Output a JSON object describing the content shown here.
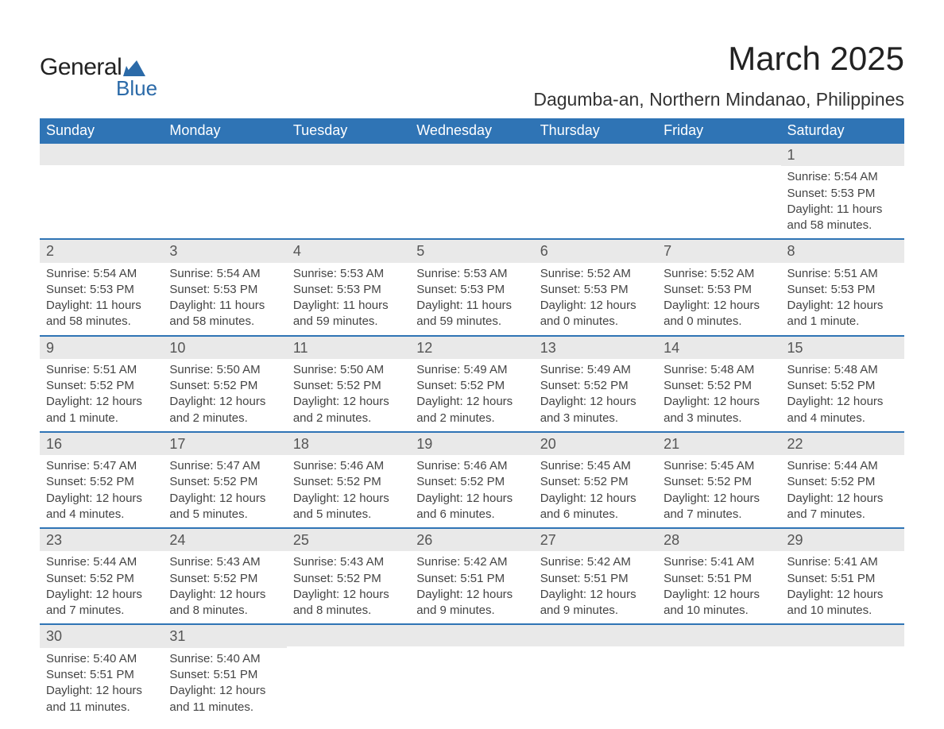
{
  "brand": {
    "text_top": "General",
    "text_bottom": "Blue",
    "shape_color": "#2b6aa8",
    "text_top_color": "#222222",
    "text_bottom_color": "#2b6aa8"
  },
  "header": {
    "month_title": "March 2025",
    "location": "Dagumba-an, Northern Mindanao, Philippines",
    "title_fontsize": 42,
    "location_fontsize": 23,
    "title_color": "#222222"
  },
  "colors": {
    "header_bg": "#2f74b5",
    "header_text": "#ffffff",
    "daynum_bg": "#e9e9e9",
    "daynum_text": "#555555",
    "row_border": "#2f74b5",
    "body_text": "#444444",
    "page_bg": "#ffffff"
  },
  "weekdays": [
    "Sunday",
    "Monday",
    "Tuesday",
    "Wednesday",
    "Thursday",
    "Friday",
    "Saturday"
  ],
  "weeks": [
    [
      {
        "day": "",
        "sunrise": "",
        "sunset": "",
        "daylight": ""
      },
      {
        "day": "",
        "sunrise": "",
        "sunset": "",
        "daylight": ""
      },
      {
        "day": "",
        "sunrise": "",
        "sunset": "",
        "daylight": ""
      },
      {
        "day": "",
        "sunrise": "",
        "sunset": "",
        "daylight": ""
      },
      {
        "day": "",
        "sunrise": "",
        "sunset": "",
        "daylight": ""
      },
      {
        "day": "",
        "sunrise": "",
        "sunset": "",
        "daylight": ""
      },
      {
        "day": "1",
        "sunrise": "Sunrise: 5:54 AM",
        "sunset": "Sunset: 5:53 PM",
        "daylight": "Daylight: 11 hours and 58 minutes."
      }
    ],
    [
      {
        "day": "2",
        "sunrise": "Sunrise: 5:54 AM",
        "sunset": "Sunset: 5:53 PM",
        "daylight": "Daylight: 11 hours and 58 minutes."
      },
      {
        "day": "3",
        "sunrise": "Sunrise: 5:54 AM",
        "sunset": "Sunset: 5:53 PM",
        "daylight": "Daylight: 11 hours and 58 minutes."
      },
      {
        "day": "4",
        "sunrise": "Sunrise: 5:53 AM",
        "sunset": "Sunset: 5:53 PM",
        "daylight": "Daylight: 11 hours and 59 minutes."
      },
      {
        "day": "5",
        "sunrise": "Sunrise: 5:53 AM",
        "sunset": "Sunset: 5:53 PM",
        "daylight": "Daylight: 11 hours and 59 minutes."
      },
      {
        "day": "6",
        "sunrise": "Sunrise: 5:52 AM",
        "sunset": "Sunset: 5:53 PM",
        "daylight": "Daylight: 12 hours and 0 minutes."
      },
      {
        "day": "7",
        "sunrise": "Sunrise: 5:52 AM",
        "sunset": "Sunset: 5:53 PM",
        "daylight": "Daylight: 12 hours and 0 minutes."
      },
      {
        "day": "8",
        "sunrise": "Sunrise: 5:51 AM",
        "sunset": "Sunset: 5:53 PM",
        "daylight": "Daylight: 12 hours and 1 minute."
      }
    ],
    [
      {
        "day": "9",
        "sunrise": "Sunrise: 5:51 AM",
        "sunset": "Sunset: 5:52 PM",
        "daylight": "Daylight: 12 hours and 1 minute."
      },
      {
        "day": "10",
        "sunrise": "Sunrise: 5:50 AM",
        "sunset": "Sunset: 5:52 PM",
        "daylight": "Daylight: 12 hours and 2 minutes."
      },
      {
        "day": "11",
        "sunrise": "Sunrise: 5:50 AM",
        "sunset": "Sunset: 5:52 PM",
        "daylight": "Daylight: 12 hours and 2 minutes."
      },
      {
        "day": "12",
        "sunrise": "Sunrise: 5:49 AM",
        "sunset": "Sunset: 5:52 PM",
        "daylight": "Daylight: 12 hours and 2 minutes."
      },
      {
        "day": "13",
        "sunrise": "Sunrise: 5:49 AM",
        "sunset": "Sunset: 5:52 PM",
        "daylight": "Daylight: 12 hours and 3 minutes."
      },
      {
        "day": "14",
        "sunrise": "Sunrise: 5:48 AM",
        "sunset": "Sunset: 5:52 PM",
        "daylight": "Daylight: 12 hours and 3 minutes."
      },
      {
        "day": "15",
        "sunrise": "Sunrise: 5:48 AM",
        "sunset": "Sunset: 5:52 PM",
        "daylight": "Daylight: 12 hours and 4 minutes."
      }
    ],
    [
      {
        "day": "16",
        "sunrise": "Sunrise: 5:47 AM",
        "sunset": "Sunset: 5:52 PM",
        "daylight": "Daylight: 12 hours and 4 minutes."
      },
      {
        "day": "17",
        "sunrise": "Sunrise: 5:47 AM",
        "sunset": "Sunset: 5:52 PM",
        "daylight": "Daylight: 12 hours and 5 minutes."
      },
      {
        "day": "18",
        "sunrise": "Sunrise: 5:46 AM",
        "sunset": "Sunset: 5:52 PM",
        "daylight": "Daylight: 12 hours and 5 minutes."
      },
      {
        "day": "19",
        "sunrise": "Sunrise: 5:46 AM",
        "sunset": "Sunset: 5:52 PM",
        "daylight": "Daylight: 12 hours and 6 minutes."
      },
      {
        "day": "20",
        "sunrise": "Sunrise: 5:45 AM",
        "sunset": "Sunset: 5:52 PM",
        "daylight": "Daylight: 12 hours and 6 minutes."
      },
      {
        "day": "21",
        "sunrise": "Sunrise: 5:45 AM",
        "sunset": "Sunset: 5:52 PM",
        "daylight": "Daylight: 12 hours and 7 minutes."
      },
      {
        "day": "22",
        "sunrise": "Sunrise: 5:44 AM",
        "sunset": "Sunset: 5:52 PM",
        "daylight": "Daylight: 12 hours and 7 minutes."
      }
    ],
    [
      {
        "day": "23",
        "sunrise": "Sunrise: 5:44 AM",
        "sunset": "Sunset: 5:52 PM",
        "daylight": "Daylight: 12 hours and 7 minutes."
      },
      {
        "day": "24",
        "sunrise": "Sunrise: 5:43 AM",
        "sunset": "Sunset: 5:52 PM",
        "daylight": "Daylight: 12 hours and 8 minutes."
      },
      {
        "day": "25",
        "sunrise": "Sunrise: 5:43 AM",
        "sunset": "Sunset: 5:52 PM",
        "daylight": "Daylight: 12 hours and 8 minutes."
      },
      {
        "day": "26",
        "sunrise": "Sunrise: 5:42 AM",
        "sunset": "Sunset: 5:51 PM",
        "daylight": "Daylight: 12 hours and 9 minutes."
      },
      {
        "day": "27",
        "sunrise": "Sunrise: 5:42 AM",
        "sunset": "Sunset: 5:51 PM",
        "daylight": "Daylight: 12 hours and 9 minutes."
      },
      {
        "day": "28",
        "sunrise": "Sunrise: 5:41 AM",
        "sunset": "Sunset: 5:51 PM",
        "daylight": "Daylight: 12 hours and 10 minutes."
      },
      {
        "day": "29",
        "sunrise": "Sunrise: 5:41 AM",
        "sunset": "Sunset: 5:51 PM",
        "daylight": "Daylight: 12 hours and 10 minutes."
      }
    ],
    [
      {
        "day": "30",
        "sunrise": "Sunrise: 5:40 AM",
        "sunset": "Sunset: 5:51 PM",
        "daylight": "Daylight: 12 hours and 11 minutes."
      },
      {
        "day": "31",
        "sunrise": "Sunrise: 5:40 AM",
        "sunset": "Sunset: 5:51 PM",
        "daylight": "Daylight: 12 hours and 11 minutes."
      },
      {
        "day": "",
        "sunrise": "",
        "sunset": "",
        "daylight": ""
      },
      {
        "day": "",
        "sunrise": "",
        "sunset": "",
        "daylight": ""
      },
      {
        "day": "",
        "sunrise": "",
        "sunset": "",
        "daylight": ""
      },
      {
        "day": "",
        "sunrise": "",
        "sunset": "",
        "daylight": ""
      },
      {
        "day": "",
        "sunrise": "",
        "sunset": "",
        "daylight": ""
      }
    ]
  ]
}
